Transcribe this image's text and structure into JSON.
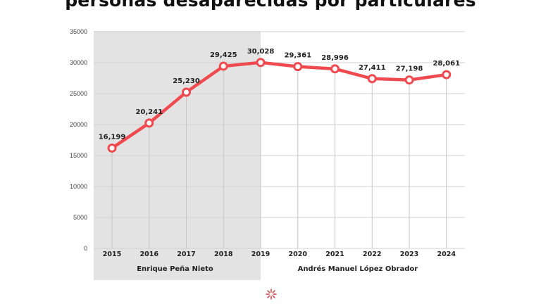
{
  "chart_data": {
    "type": "line",
    "title": "personas desaparecidas por particulares",
    "xlabel": "",
    "ylabel": "",
    "x": [
      "2015",
      "2016",
      "2017",
      "2018",
      "2019",
      "2020",
      "2021",
      "2022",
      "2023",
      "2024"
    ],
    "series": [
      {
        "name": "personas desaparecidas",
        "values": [
          16199,
          20241,
          25230,
          29425,
          30028,
          29361,
          28996,
          27411,
          27198,
          28061
        ],
        "color": "#ef4a4f"
      }
    ],
    "data_labels": [
      "16,199",
      "20,241",
      "25,230",
      "29,425",
      "30,028",
      "29,361",
      "28,996",
      "27,411",
      "27,198",
      "28,061"
    ],
    "ylim": [
      0,
      35000
    ],
    "yticks": [
      0,
      5000,
      10000,
      15000,
      20000,
      25000,
      30000,
      35000
    ],
    "ytick_labels": [
      "0",
      "5000",
      "10000",
      "15000",
      "20000",
      "25000",
      "30000",
      "35000"
    ],
    "grid": true,
    "periods": [
      {
        "label": "Enrique Peña Nieto",
        "from": "2015",
        "to": "2019",
        "shaded": true,
        "color": "#e3e3e3"
      },
      {
        "label": "Andrés Manuel López Obrador",
        "from": "2019",
        "to": "2024",
        "shaded": false
      }
    ]
  },
  "logo": {
    "name": "logo-icon",
    "color": "#c0484c"
  }
}
